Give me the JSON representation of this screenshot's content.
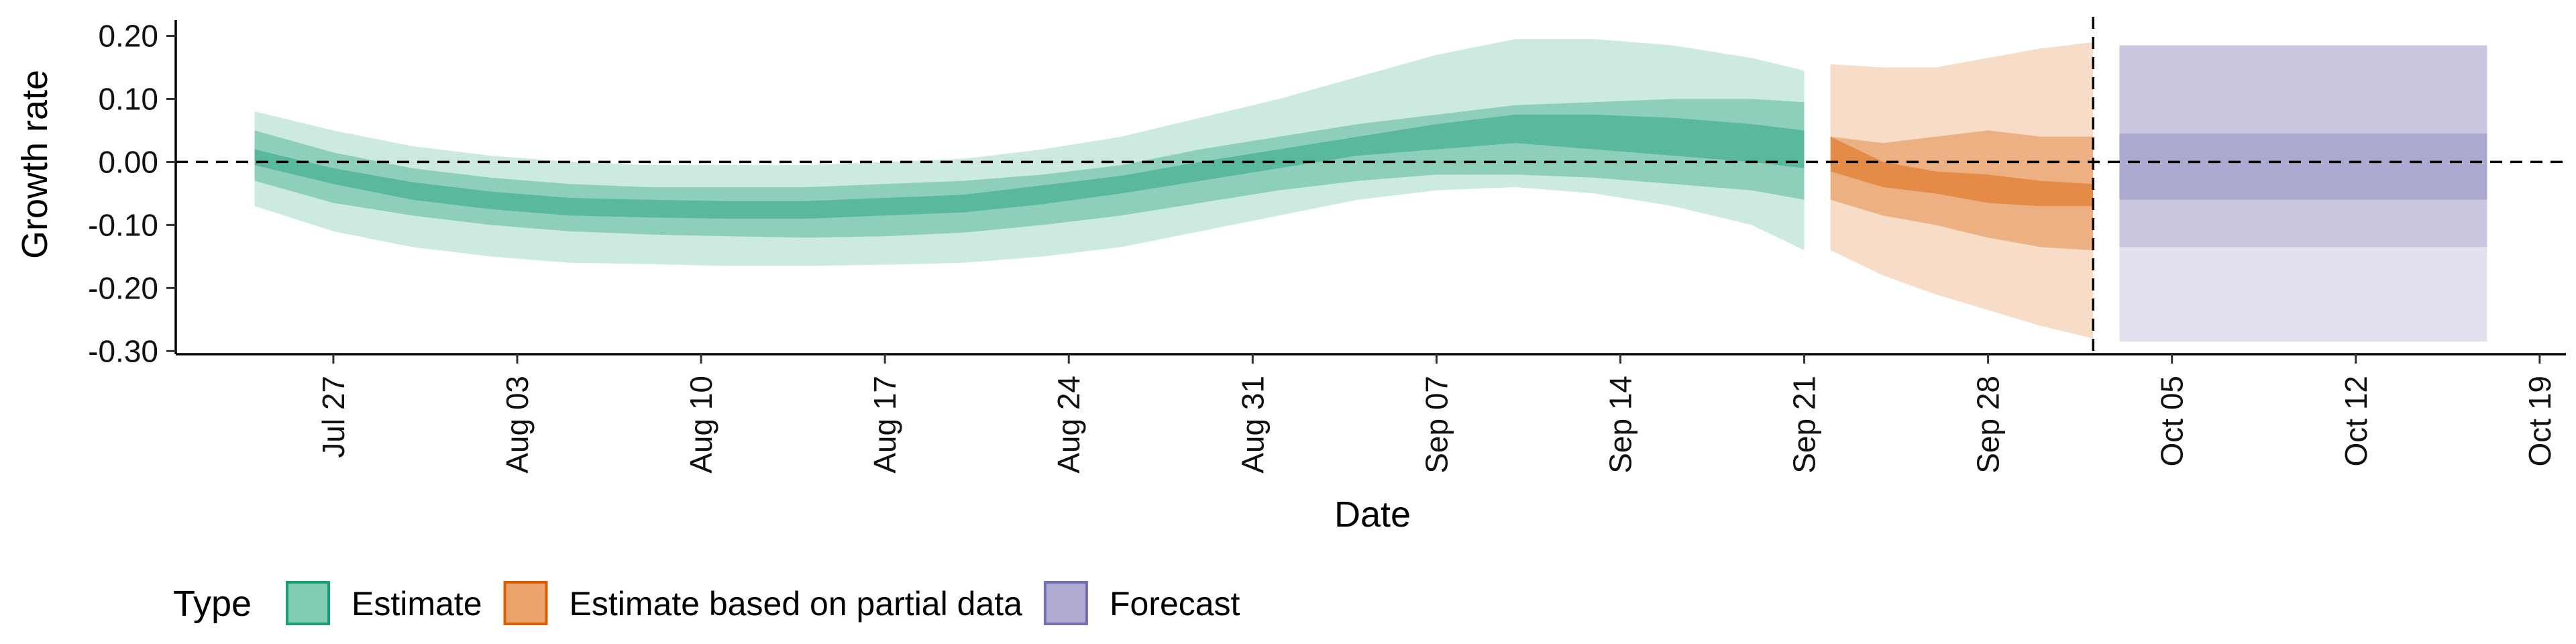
{
  "chart_data": {
    "type": "area",
    "xlabel": "Date",
    "ylabel": "Growth rate",
    "x_tick_labels": [
      "Jul 27",
      "Aug 03",
      "Aug 10",
      "Aug 17",
      "Aug 24",
      "Aug 31",
      "Sep 07",
      "Sep 14",
      "Sep 21",
      "Sep 28",
      "Oct 05",
      "Oct 12",
      "Oct 19"
    ],
    "x_tick_dates": [
      "2020-07-27",
      "2020-08-03",
      "2020-08-10",
      "2020-08-17",
      "2020-08-24",
      "2020-08-31",
      "2020-09-07",
      "2020-09-14",
      "2020-09-21",
      "2020-09-28",
      "2020-10-05",
      "2020-10-12",
      "2020-10-19"
    ],
    "xlim": [
      "2020-07-21",
      "2020-10-20"
    ],
    "y_ticks": [
      0.2,
      0.1,
      0.0,
      -0.1,
      -0.2,
      -0.3
    ],
    "y_tick_labels": [
      "0.20",
      "0.10",
      "0.00",
      "-0.10",
      "-0.20",
      "-0.30"
    ],
    "ylim": [
      -0.305,
      0.225
    ],
    "reference_lines": [
      {
        "axis": "y",
        "value": 0.0,
        "style": "dashed"
      },
      {
        "axis": "x",
        "value": "2020-10-02",
        "style": "dashed"
      }
    ],
    "grid": false,
    "legend": {
      "title": "Type",
      "position": "bottom-left",
      "items": [
        {
          "label": "Estimate",
          "fill": "#7fccb1",
          "stroke": "#1b9e77"
        },
        {
          "label": "Estimate based on partial data",
          "fill": "#eaa46c",
          "stroke": "#d95f02"
        },
        {
          "label": "Forecast",
          "fill": "#aeaad2",
          "stroke": "#7570b3"
        }
      ]
    },
    "series": [
      {
        "name": "Estimate",
        "color": "#1b9e77",
        "x": [
          "2020-07-24",
          "2020-07-27",
          "2020-07-30",
          "2020-08-02",
          "2020-08-05",
          "2020-08-08",
          "2020-08-11",
          "2020-08-14",
          "2020-08-17",
          "2020-08-20",
          "2020-08-23",
          "2020-08-26",
          "2020-08-29",
          "2020-09-01",
          "2020-09-04",
          "2020-09-07",
          "2020-09-10",
          "2020-09-13",
          "2020-09-16",
          "2020-09-19",
          "2020-09-21"
        ],
        "median": [
          0.01,
          -0.02,
          -0.045,
          -0.06,
          -0.07,
          -0.073,
          -0.075,
          -0.075,
          -0.07,
          -0.065,
          -0.05,
          -0.035,
          -0.015,
          0.005,
          0.025,
          0.04,
          0.055,
          0.05,
          0.045,
          0.035,
          0.025
        ],
        "inner_lower": [
          -0.005,
          -0.035,
          -0.06,
          -0.075,
          -0.085,
          -0.088,
          -0.09,
          -0.09,
          -0.085,
          -0.08,
          -0.067,
          -0.05,
          -0.03,
          -0.01,
          0.01,
          0.02,
          0.03,
          0.02,
          0.01,
          0.0,
          -0.01
        ],
        "inner_upper": [
          0.02,
          -0.01,
          -0.032,
          -0.047,
          -0.057,
          -0.06,
          -0.062,
          -0.062,
          -0.057,
          -0.052,
          -0.037,
          -0.022,
          0.0,
          0.02,
          0.04,
          0.06,
          0.075,
          0.075,
          0.07,
          0.06,
          0.05
        ],
        "mid_lower": [
          -0.03,
          -0.065,
          -0.085,
          -0.1,
          -0.11,
          -0.115,
          -0.118,
          -0.12,
          -0.118,
          -0.112,
          -0.1,
          -0.085,
          -0.065,
          -0.045,
          -0.03,
          -0.02,
          -0.02,
          -0.025,
          -0.035,
          -0.045,
          -0.06
        ],
        "mid_upper": [
          0.05,
          0.015,
          -0.01,
          -0.025,
          -0.035,
          -0.04,
          -0.04,
          -0.04,
          -0.035,
          -0.03,
          -0.02,
          -0.005,
          0.02,
          0.04,
          0.06,
          0.075,
          0.09,
          0.095,
          0.1,
          0.1,
          0.095
        ],
        "outer_lower": [
          -0.07,
          -0.11,
          -0.135,
          -0.15,
          -0.16,
          -0.162,
          -0.165,
          -0.165,
          -0.163,
          -0.16,
          -0.15,
          -0.135,
          -0.11,
          -0.085,
          -0.06,
          -0.045,
          -0.04,
          -0.05,
          -0.07,
          -0.1,
          -0.14
        ],
        "outer_upper": [
          0.08,
          0.05,
          0.025,
          0.01,
          0.0,
          -0.005,
          -0.005,
          -0.005,
          0.0,
          0.005,
          0.02,
          0.04,
          0.07,
          0.1,
          0.135,
          0.17,
          0.195,
          0.195,
          0.185,
          0.165,
          0.145
        ]
      },
      {
        "name": "Estimate based on partial data",
        "color": "#d95f02",
        "x": [
          "2020-09-22",
          "2020-09-24",
          "2020-09-26",
          "2020-09-28",
          "2020-09-30",
          "2020-10-02"
        ],
        "median": [
          0.0,
          -0.02,
          -0.035,
          -0.045,
          -0.05,
          -0.055
        ],
        "inner_lower": [
          -0.015,
          -0.04,
          -0.05,
          -0.065,
          -0.07,
          -0.07
        ],
        "inner_upper": [
          0.04,
          0.0,
          -0.015,
          -0.02,
          -0.03,
          -0.035
        ],
        "mid_lower": [
          -0.06,
          -0.085,
          -0.1,
          -0.12,
          -0.135,
          -0.14
        ],
        "mid_upper": [
          0.04,
          0.03,
          0.04,
          0.05,
          0.04,
          0.04
        ],
        "outer_lower": [
          -0.14,
          -0.18,
          -0.21,
          -0.235,
          -0.26,
          -0.28
        ],
        "outer_upper": [
          0.155,
          0.15,
          0.15,
          0.165,
          0.18,
          0.19
        ]
      },
      {
        "name": "Forecast",
        "color": "#7570b3",
        "x": [
          "2020-10-03",
          "2020-10-17"
        ],
        "median": [
          -0.01,
          -0.01
        ],
        "mid_lower": [
          -0.06,
          -0.06
        ],
        "mid_upper": [
          0.045,
          0.045
        ],
        "outer_lower": [
          -0.135,
          -0.135
        ],
        "outer_upper": [
          0.185,
          0.185
        ],
        "outermost_lower": [
          -0.285,
          -0.285
        ],
        "outermost_upper": [
          0.185,
          0.185
        ]
      }
    ]
  }
}
